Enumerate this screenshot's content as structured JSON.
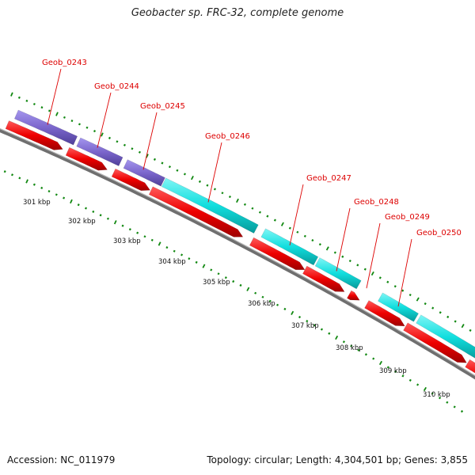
{
  "title": "Geobacter sp. FRC-32, complete genome",
  "footer": {
    "accession": "Accession: NC_011979",
    "summary": "Topology: circular; Length: 4,304,501 bp; Genes: 3,855"
  },
  "colors": {
    "cds": "#ee0000",
    "gene_purple": "#7b66cc",
    "gene_cyan": "#11dede",
    "label": "#dd0000",
    "backbone": "#8a8a8a",
    "ticks": "#118811"
  },
  "gene_labels": [
    "Geob_0243",
    "Geob_0244",
    "Geob_0245",
    "Geob_0246",
    "Geob_0247",
    "Geob_0248",
    "Geob_0249",
    "Geob_0250"
  ],
  "kbp_labels": [
    "301 kbp",
    "302 kbp",
    "303 kbp",
    "304 kbp",
    "305 kbp",
    "306 kbp",
    "307 kbp",
    "308 kbp",
    "309 kbp",
    "310 kbp"
  ]
}
